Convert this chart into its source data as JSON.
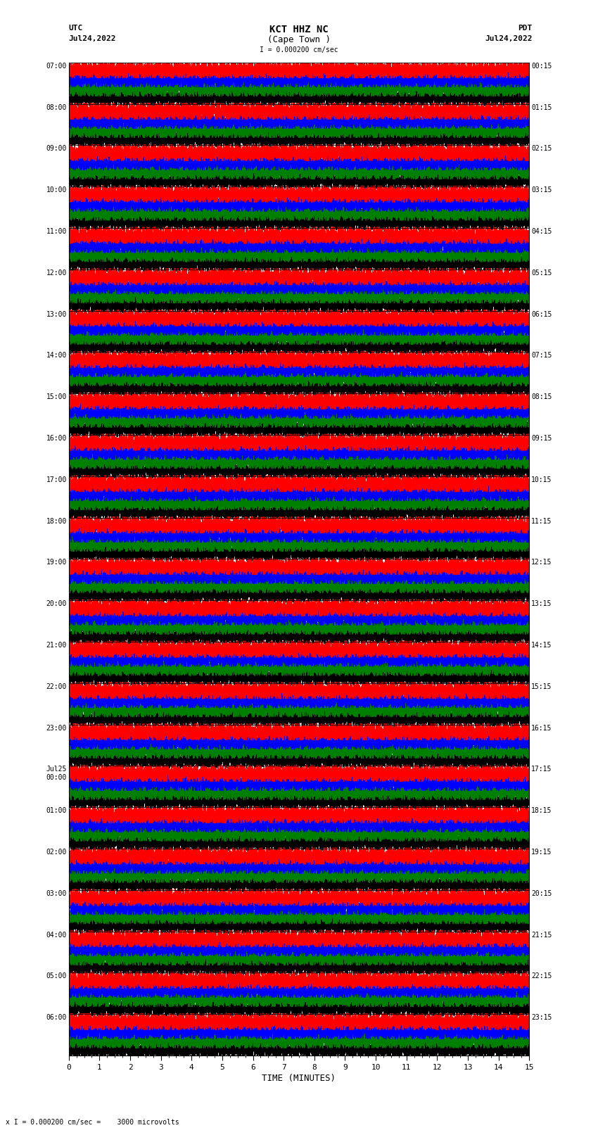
{
  "title_line1": "KCT HHZ NC",
  "title_line2": "(Cape Town )",
  "scale_label": "I = 0.000200 cm/sec",
  "bottom_label": "x I = 0.000200 cm/sec =    3000 microvolts",
  "xlabel": "TIME (MINUTES)",
  "left_label_top": "UTC",
  "left_label_date": "Jul24,2022",
  "right_label_top": "PDT",
  "right_label_date": "Jul24,2022",
  "utc_times_left": [
    "07:00",
    "08:00",
    "09:00",
    "10:00",
    "11:00",
    "12:00",
    "13:00",
    "14:00",
    "15:00",
    "16:00",
    "17:00",
    "18:00",
    "19:00",
    "20:00",
    "21:00",
    "22:00",
    "23:00",
    "Jul25\n00:00",
    "01:00",
    "02:00",
    "03:00",
    "04:00",
    "05:00",
    "06:00"
  ],
  "pdt_times_right": [
    "00:15",
    "01:15",
    "02:15",
    "03:15",
    "04:15",
    "05:15",
    "06:15",
    "07:15",
    "08:15",
    "09:15",
    "10:15",
    "11:15",
    "12:15",
    "13:15",
    "14:15",
    "15:15",
    "16:15",
    "17:15",
    "18:15",
    "19:15",
    "20:15",
    "21:15",
    "22:15",
    "23:15"
  ],
  "n_rows": 24,
  "minutes_per_row": 15,
  "bg_color": "white",
  "fig_width": 8.5,
  "fig_height": 16.13,
  "dpi": 100
}
